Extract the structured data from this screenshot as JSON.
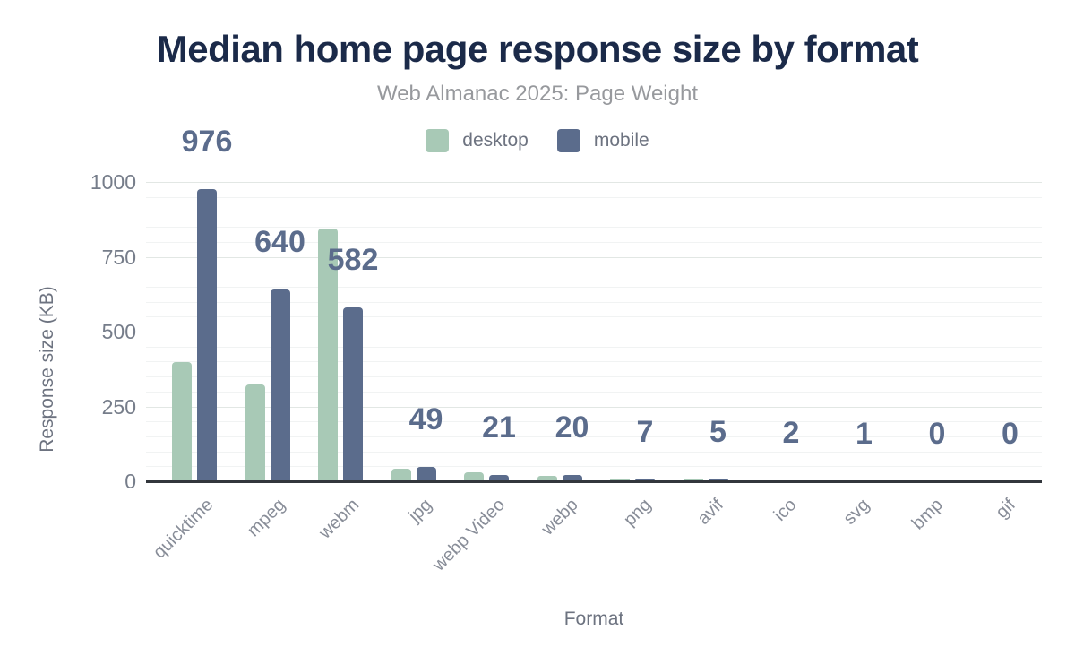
{
  "page": {
    "title": "Median home page response size by format",
    "subtitle": "Web Almanac 2025: Page Weight"
  },
  "chart_data": {
    "type": "bar",
    "title": "Median home page response size by format",
    "subtitle": "Web Almanac 2025: Page Weight",
    "xlabel": "Format",
    "ylabel": "Response size (KB)",
    "ylim": [
      0,
      1000
    ],
    "yticks": [
      0,
      250,
      500,
      750,
      1000
    ],
    "minor_grid_step": 50,
    "grid": "horizontal",
    "legend_position": "top-center",
    "categories": [
      "quicktime",
      "mpeg",
      "webm",
      "jpg",
      "webp Video",
      "webp",
      "png",
      "avif",
      "ico",
      "svg",
      "bmp",
      "gif"
    ],
    "series": [
      {
        "name": "desktop",
        "color": "#a8c9b6",
        "values": [
          398,
          322,
          845,
          43,
          30,
          19,
          9,
          8,
          2,
          1,
          0,
          0
        ],
        "labeled": false
      },
      {
        "name": "mobile",
        "color": "#5b6c8c",
        "values": [
          976,
          640,
          582,
          49,
          21,
          20,
          7,
          5,
          2,
          1,
          0,
          0
        ],
        "labeled": true
      }
    ],
    "bar_labels": [
      "976",
      "640",
      "582",
      "49",
      "21",
      "20",
      "7",
      "5",
      "2",
      "1",
      "0",
      "0"
    ]
  },
  "colors": {
    "title": "#1b2a49",
    "subtitle": "#97999d",
    "desktop": "#a8c9b6",
    "mobile": "#5b6c8c",
    "data_label": "#5b6c8c",
    "tick_label": "#767d8a",
    "category_label": "#888d98",
    "axis_title": "#6d7380",
    "axis_line": "#32363c",
    "grid_major": "#e2e7e4",
    "grid_minor": "#f1f3f3"
  }
}
